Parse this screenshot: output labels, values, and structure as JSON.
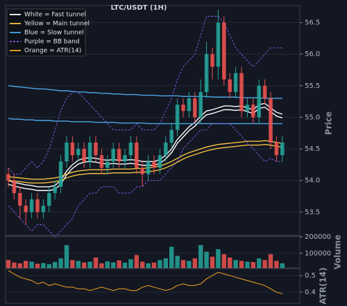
{
  "chart_data": [
    {
      "type": "candlestick",
      "title": "LTC/USDT (1H)",
      "ylabel": "Price",
      "up_color": "#26a69a",
      "down_color": "#ef5350",
      "grid": true,
      "ylim": [
        53.13,
        56.77
      ],
      "yticks": [
        53.5,
        {
          "value": 54,
          "label": "54.0"
        },
        54.5,
        {
          "value": 55,
          "label": "55.0"
        },
        55.5,
        {
          "value": 56,
          "label": "56.0"
        },
        56.5
      ],
      "open": [
        54.1,
        54.0,
        53.8,
        53.6,
        53.5,
        53.7,
        53.5,
        53.6,
        53.8,
        53.9,
        54.3,
        54.6,
        54.4,
        54.5,
        54.3,
        54.6,
        54.4,
        54.2,
        54.3,
        54.5,
        54.3,
        54.4,
        54.6,
        54.2,
        54.1,
        54.3,
        54.2,
        54.4,
        54.6,
        54.8,
        55.2,
        55.1,
        55.3,
        55.0,
        55.4,
        56.0,
        55.8,
        56.5,
        55.6,
        55.4,
        55.7,
        55.1,
        55.2,
        55.0,
        55.5,
        55.3,
        54.6,
        54.4
      ],
      "high": [
        54.2,
        54.1,
        53.9,
        53.7,
        53.8,
        53.8,
        53.7,
        53.9,
        54.0,
        54.4,
        54.7,
        54.7,
        54.6,
        54.6,
        54.7,
        54.7,
        54.5,
        54.4,
        54.6,
        54.6,
        54.5,
        54.7,
        54.7,
        54.3,
        54.4,
        54.4,
        54.5,
        54.7,
        54.9,
        55.3,
        55.3,
        55.4,
        55.4,
        55.6,
        56.2,
        56.1,
        56.7,
        56.6,
        55.7,
        55.8,
        55.8,
        55.3,
        55.3,
        55.6,
        55.6,
        55.4,
        54.7,
        54.7
      ],
      "low": [
        53.9,
        53.7,
        53.4,
        53.3,
        53.4,
        53.4,
        53.4,
        53.5,
        53.7,
        53.8,
        54.2,
        54.3,
        54.3,
        54.2,
        54.2,
        54.3,
        54.1,
        54.1,
        54.2,
        54.2,
        54.2,
        54.3,
        54.1,
        53.9,
        54.0,
        54.1,
        54.1,
        54.3,
        54.5,
        54.7,
        55.0,
        55.0,
        54.9,
        54.9,
        55.3,
        55.6,
        55.6,
        55.5,
        55.3,
        55.3,
        55.0,
        55.0,
        54.9,
        54.9,
        55.2,
        54.5,
        54.3,
        54.3
      ],
      "close": [
        54.0,
        53.8,
        53.6,
        53.5,
        53.7,
        53.5,
        53.6,
        53.8,
        53.9,
        54.3,
        54.6,
        54.4,
        54.5,
        54.3,
        54.6,
        54.4,
        54.2,
        54.3,
        54.5,
        54.3,
        54.4,
        54.6,
        54.2,
        54.1,
        54.3,
        54.2,
        54.4,
        54.6,
        54.8,
        55.2,
        55.1,
        55.3,
        55.0,
        55.4,
        56.0,
        55.8,
        56.5,
        55.6,
        55.4,
        55.7,
        55.1,
        55.2,
        55.0,
        55.5,
        55.3,
        54.6,
        54.4,
        54.6
      ],
      "series": [
        {
          "name": "White = Fast tunnel",
          "color": "#ffffff",
          "dashed": false,
          "upper": [
            54.0,
            53.97,
            53.95,
            53.93,
            53.92,
            53.9,
            53.9,
            53.9,
            53.92,
            54.0,
            54.15,
            54.25,
            54.32,
            54.35,
            54.36,
            54.35,
            54.33,
            54.32,
            54.33,
            54.32,
            54.32,
            54.33,
            54.32,
            54.3,
            54.3,
            54.3,
            54.33,
            54.4,
            54.5,
            54.65,
            54.75,
            54.85,
            54.92,
            55.02,
            55.1,
            55.12,
            55.15,
            55.18,
            55.18,
            55.17,
            55.18,
            55.15,
            55.12,
            55.2,
            55.22,
            55.15,
            55.08,
            55.05
          ],
          "lower": [
            53.94,
            53.91,
            53.89,
            53.87,
            53.86,
            53.84,
            53.84,
            53.84,
            53.86,
            53.94,
            54.09,
            54.19,
            54.26,
            54.29,
            54.3,
            54.29,
            54.27,
            54.26,
            54.27,
            54.26,
            54.26,
            54.27,
            54.26,
            54.24,
            54.24,
            54.24,
            54.27,
            54.34,
            54.44,
            54.59,
            54.69,
            54.79,
            54.86,
            54.96,
            55.04,
            55.06,
            55.09,
            55.12,
            55.12,
            55.11,
            55.12,
            55.09,
            55.06,
            55.14,
            55.16,
            55.09,
            55.02,
            54.99
          ]
        },
        {
          "name": "Yellow = Main tunnel",
          "color": "#f5c242",
          "dashed": false,
          "upper": [
            54.06,
            54.05,
            54.04,
            54.03,
            54.02,
            54.02,
            54.02,
            54.03,
            54.04,
            54.06,
            54.1,
            54.13,
            54.15,
            54.16,
            54.17,
            54.17,
            54.17,
            54.17,
            54.18,
            54.18,
            54.18,
            54.18,
            54.19,
            54.19,
            54.2,
            54.21,
            54.23,
            54.26,
            54.3,
            54.35,
            54.4,
            54.44,
            54.47,
            54.5,
            54.53,
            54.55,
            54.57,
            54.58,
            54.59,
            54.6,
            54.61,
            54.62,
            54.62,
            54.62,
            54.63,
            54.62,
            54.6,
            54.59
          ],
          "lower": [
            54.0,
            53.99,
            53.98,
            53.97,
            53.96,
            53.96,
            53.96,
            53.97,
            53.98,
            54.0,
            54.04,
            54.07,
            54.09,
            54.1,
            54.11,
            54.11,
            54.11,
            54.11,
            54.12,
            54.12,
            54.12,
            54.12,
            54.13,
            54.13,
            54.14,
            54.15,
            54.17,
            54.2,
            54.24,
            54.29,
            54.34,
            54.38,
            54.41,
            54.44,
            54.47,
            54.49,
            54.51,
            54.52,
            54.53,
            54.54,
            54.55,
            54.56,
            54.56,
            54.56,
            54.57,
            54.56,
            54.54,
            54.53
          ]
        },
        {
          "name": "Blue = Slow tunnel",
          "color": "#4aa8e8",
          "dashed": false,
          "upper": [
            55.5,
            55.49,
            55.48,
            55.47,
            55.46,
            55.45,
            55.45,
            55.44,
            55.43,
            55.42,
            55.42,
            55.41,
            55.4,
            55.4,
            55.39,
            55.39,
            55.38,
            55.38,
            55.37,
            55.37,
            55.36,
            55.36,
            55.36,
            55.35,
            55.35,
            55.35,
            55.34,
            55.34,
            55.34,
            55.34,
            55.33,
            55.33,
            55.33,
            55.33,
            55.33,
            55.32,
            55.32,
            55.32,
            55.32,
            55.32,
            55.31,
            55.31,
            55.31,
            55.31,
            55.3,
            55.3,
            55.3,
            55.3
          ],
          "lower": [
            54.98,
            54.97,
            54.97,
            54.96,
            54.96,
            54.95,
            54.95,
            54.95,
            54.94,
            54.94,
            54.94,
            54.93,
            54.93,
            54.93,
            54.93,
            54.92,
            54.92,
            54.92,
            54.92,
            54.91,
            54.91,
            54.91,
            54.91,
            54.91,
            54.9,
            54.9,
            54.9,
            54.9,
            54.9,
            54.9,
            54.9,
            54.9,
            54.9,
            54.9,
            54.9,
            54.9,
            54.9,
            54.9,
            54.9,
            54.9,
            54.9,
            54.9,
            54.9,
            54.9,
            54.9,
            54.9,
            54.9,
            54.9
          ]
        },
        {
          "name": "Purple = BB band",
          "color": "#8a5cf0",
          "dashed": true,
          "upper": [
            54.2,
            54.1,
            54.1,
            54.2,
            54.3,
            54.2,
            54.3,
            54.5,
            54.8,
            55.1,
            55.3,
            55.4,
            55.4,
            55.3,
            55.2,
            55.1,
            55.0,
            54.9,
            54.8,
            54.8,
            54.8,
            54.8,
            54.9,
            54.8,
            54.8,
            54.8,
            54.9,
            55.1,
            55.3,
            55.6,
            55.8,
            55.9,
            56.0,
            56.3,
            56.6,
            56.6,
            56.6,
            56.5,
            56.3,
            56.1,
            56.0,
            55.9,
            55.8,
            55.9,
            56.0,
            56.1,
            56.1,
            56.1
          ],
          "lower": [
            53.6,
            53.5,
            53.4,
            53.3,
            53.2,
            53.3,
            53.3,
            53.2,
            53.1,
            53.2,
            53.3,
            53.4,
            53.6,
            53.7,
            53.8,
            53.8,
            53.9,
            53.9,
            53.9,
            53.8,
            53.8,
            53.8,
            53.9,
            53.9,
            54.0,
            54.0,
            54.0,
            54.1,
            54.2,
            54.3,
            54.5,
            54.6,
            54.7,
            54.8,
            54.8,
            54.9,
            54.9,
            54.9,
            54.9,
            54.8,
            54.7,
            54.6,
            54.5,
            54.4,
            54.3,
            54.35,
            54.3,
            54.3
          ]
        }
      ]
    },
    {
      "type": "bar",
      "ylabel": "Volume",
      "grid": true,
      "ylim": [
        12500,
        204000
      ],
      "yticks": [
        100000,
        200000
      ],
      "values": [
        60000,
        45000,
        40000,
        55000,
        50000,
        38000,
        42000,
        35000,
        48000,
        70000,
        150000,
        60000,
        55000,
        45000,
        50000,
        75000,
        40000,
        52000,
        46000,
        58000,
        44000,
        65000,
        90000,
        50000,
        40000,
        45000,
        60000,
        70000,
        140000,
        85000,
        60000,
        55000,
        70000,
        150000,
        110000,
        80000,
        125000,
        95000,
        75000,
        60000,
        55000,
        50000,
        48000,
        70000,
        60000,
        95000,
        55000,
        40000
      ]
    },
    {
      "type": "line",
      "ylabel": "ATR(14)",
      "grid": true,
      "ylim": [
        0.333,
        0.542
      ],
      "yticks": [
        0.4,
        0.5
      ],
      "series": [
        {
          "name": "Orange = ATR(14)",
          "color": "#f5a623",
          "values": [
            0.53,
            0.51,
            0.49,
            0.48,
            0.47,
            0.45,
            0.46,
            0.44,
            0.45,
            0.44,
            0.43,
            0.43,
            0.42,
            0.42,
            0.41,
            0.42,
            0.43,
            0.42,
            0.41,
            0.42,
            0.42,
            0.41,
            0.41,
            0.43,
            0.44,
            0.43,
            0.42,
            0.41,
            0.42,
            0.44,
            0.45,
            0.44,
            0.44,
            0.45,
            0.48,
            0.5,
            0.52,
            0.51,
            0.5,
            0.49,
            0.48,
            0.47,
            0.46,
            0.45,
            0.44,
            0.42,
            0.4,
            0.39
          ]
        }
      ]
    }
  ]
}
